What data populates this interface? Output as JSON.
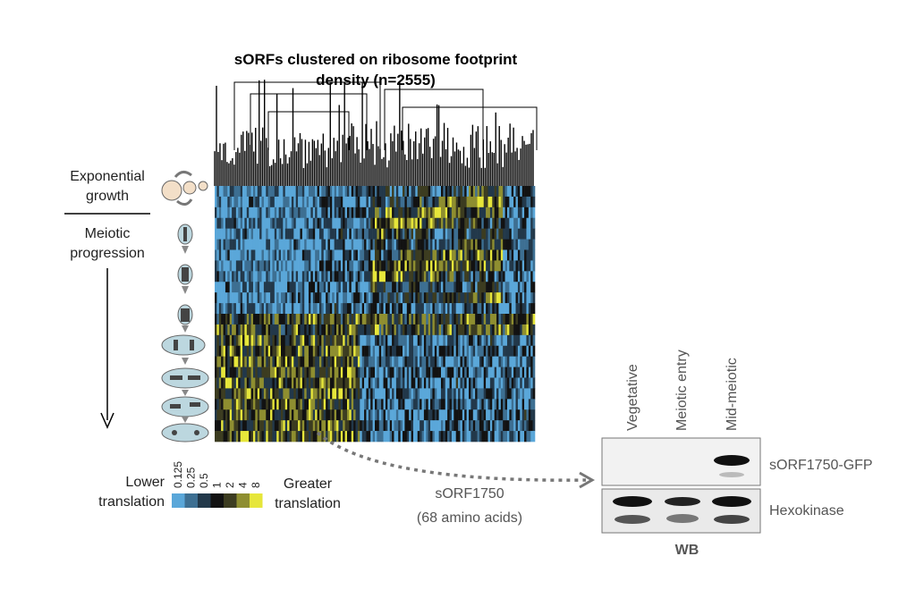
{
  "figure": {
    "title": [
      "sORFs clustered on ribosome footprint",
      "density (n=2555)"
    ],
    "stages": {
      "top": [
        "Exponential",
        "growth"
      ],
      "bottom": [
        "Meiotic",
        "progression"
      ]
    },
    "legend": {
      "low": [
        "Lower",
        "translation"
      ],
      "high": [
        "Greater",
        "translation"
      ],
      "scale": [
        "0.125",
        "0.25",
        "0.5",
        "1",
        "2",
        "4",
        "8"
      ],
      "colors": [
        "#5aa7d9",
        "#3d6f92",
        "#22384a",
        "#121212",
        "#3c3c20",
        "#8e8e30",
        "#e6e63a"
      ]
    },
    "callout": [
      "sORF1750",
      "(68 amino acids)"
    ],
    "blot": {
      "lanes": [
        "Vegetative",
        "Meiotic entry",
        "Mid-meiotic"
      ],
      "bands": [
        "sORF1750-GFP",
        "Hexokinase"
      ],
      "method": "WB"
    }
  }
}
